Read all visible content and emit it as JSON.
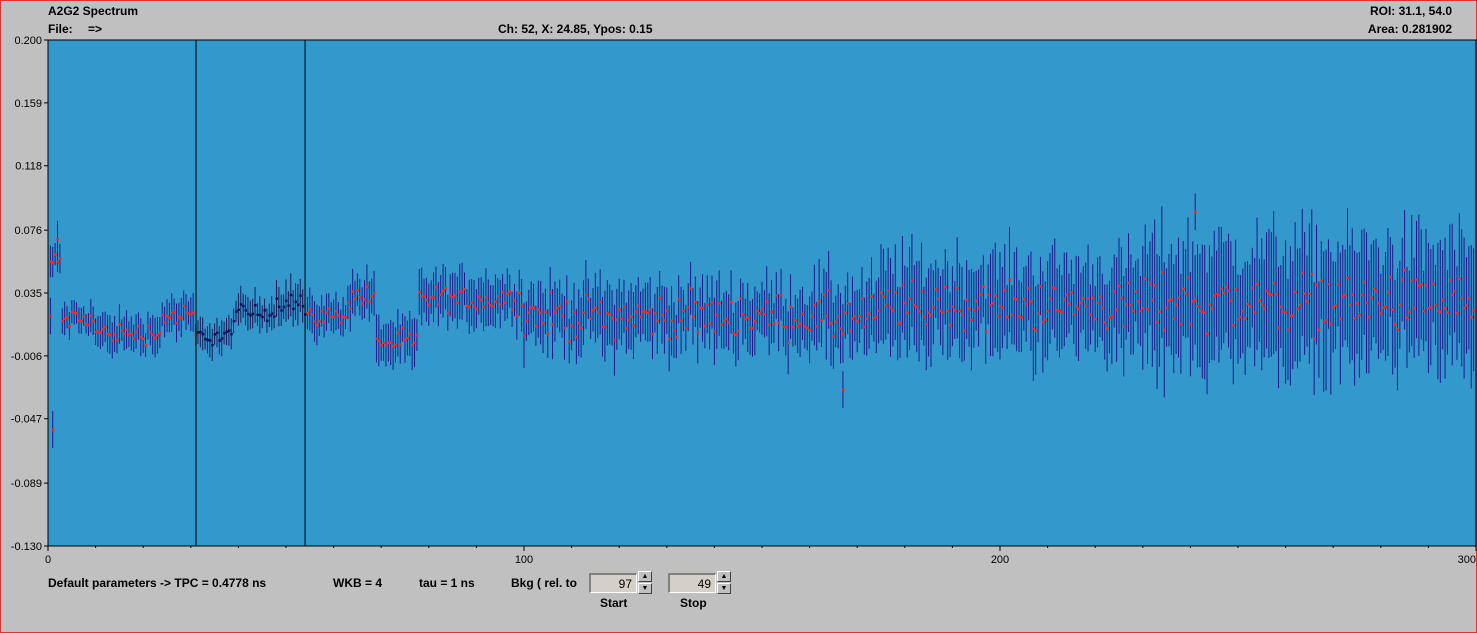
{
  "window": {
    "title": "A2G2 Spectrum",
    "menu_file": "File:",
    "menu_arrow": "=>",
    "status": "Ch: 52, X: 24.85, Ypos: 0.15",
    "roi": "ROI: 31.1, 54.0",
    "area": "Area: 0.281902"
  },
  "colors": {
    "plot_bg": "#3399cc",
    "point": "#ff2222",
    "roi_point": "#101060",
    "errorbar": "#1a1a8c",
    "roi_marker": "#000000"
  },
  "chart_data": {
    "type": "scatter",
    "xlim": [
      0,
      300
    ],
    "ylim": [
      -0.13,
      0.2
    ],
    "y_ticks": [
      "0.200",
      "0.159",
      "0.118",
      "0.076",
      "0.035",
      "-0.006",
      "-0.047",
      "-0.089",
      "-0.130"
    ],
    "y_tick_values": [
      0.2,
      0.159,
      0.118,
      0.076,
      0.035,
      -0.006,
      -0.047,
      -0.089,
      -0.13
    ],
    "x_ticks": [
      "0",
      "100",
      "200",
      "300"
    ],
    "x_tick_values": [
      0,
      100,
      200,
      300
    ],
    "roi": [
      31.1,
      54.0
    ],
    "segments": [
      {
        "x_start": 0.5,
        "x_end": 3,
        "mean": 0.055,
        "noise": 0.006,
        "err": 0.008
      },
      {
        "x_start": 3,
        "x_end": 10,
        "mean": 0.018,
        "noise": 0.006,
        "err": 0.009
      },
      {
        "x_start": 10,
        "x_end": 24,
        "mean": 0.009,
        "noise": 0.006,
        "err": 0.01
      },
      {
        "x_start": 24,
        "x_end": 31,
        "mean": 0.02,
        "noise": 0.006,
        "err": 0.01
      },
      {
        "x_start": 31,
        "x_end": 39,
        "mean": 0.007,
        "noise": 0.005,
        "err": 0.009
      },
      {
        "x_start": 39,
        "x_end": 48,
        "mean": 0.022,
        "noise": 0.005,
        "err": 0.01
      },
      {
        "x_start": 48,
        "x_end": 54,
        "mean": 0.03,
        "noise": 0.006,
        "err": 0.011
      },
      {
        "x_start": 54,
        "x_end": 63,
        "mean": 0.02,
        "noise": 0.005,
        "err": 0.011
      },
      {
        "x_start": 63,
        "x_end": 69,
        "mean": 0.033,
        "noise": 0.007,
        "err": 0.012
      },
      {
        "x_start": 69,
        "x_end": 78,
        "mean": 0.003,
        "noise": 0.006,
        "err": 0.013
      },
      {
        "x_start": 78,
        "x_end": 100,
        "mean": 0.031,
        "noise": 0.007,
        "err": 0.015
      },
      {
        "x_start": 100,
        "x_end": 160,
        "mean": 0.02,
        "noise": 0.012,
        "err": 0.018
      },
      {
        "x_start": 160,
        "x_end": 175,
        "mean": 0.018,
        "noise": 0.014,
        "err": 0.022
      },
      {
        "x_start": 175,
        "x_end": 230,
        "mean": 0.027,
        "noise": 0.014,
        "err": 0.027
      },
      {
        "x_start": 230,
        "x_end": 300,
        "mean": 0.029,
        "noise": 0.017,
        "err": 0.036
      }
    ],
    "outliers": [
      {
        "x": 0.5,
        "y": 0.02
      },
      {
        "x": 1,
        "y": -0.054
      },
      {
        "x": 2,
        "y": 0.07
      },
      {
        "x": 167,
        "y": -0.028
      },
      {
        "x": 241,
        "y": 0.088
      }
    ]
  },
  "footer": {
    "default_params": "Default parameters  ->  TPC = 0.4778 ns",
    "wkb": "WKB = 4",
    "tau": "tau = 1 ns",
    "bkg": "Bkg ( rel. to",
    "start_value": "97",
    "start_label": "Start",
    "stop_value": "49",
    "stop_label": "Stop"
  }
}
